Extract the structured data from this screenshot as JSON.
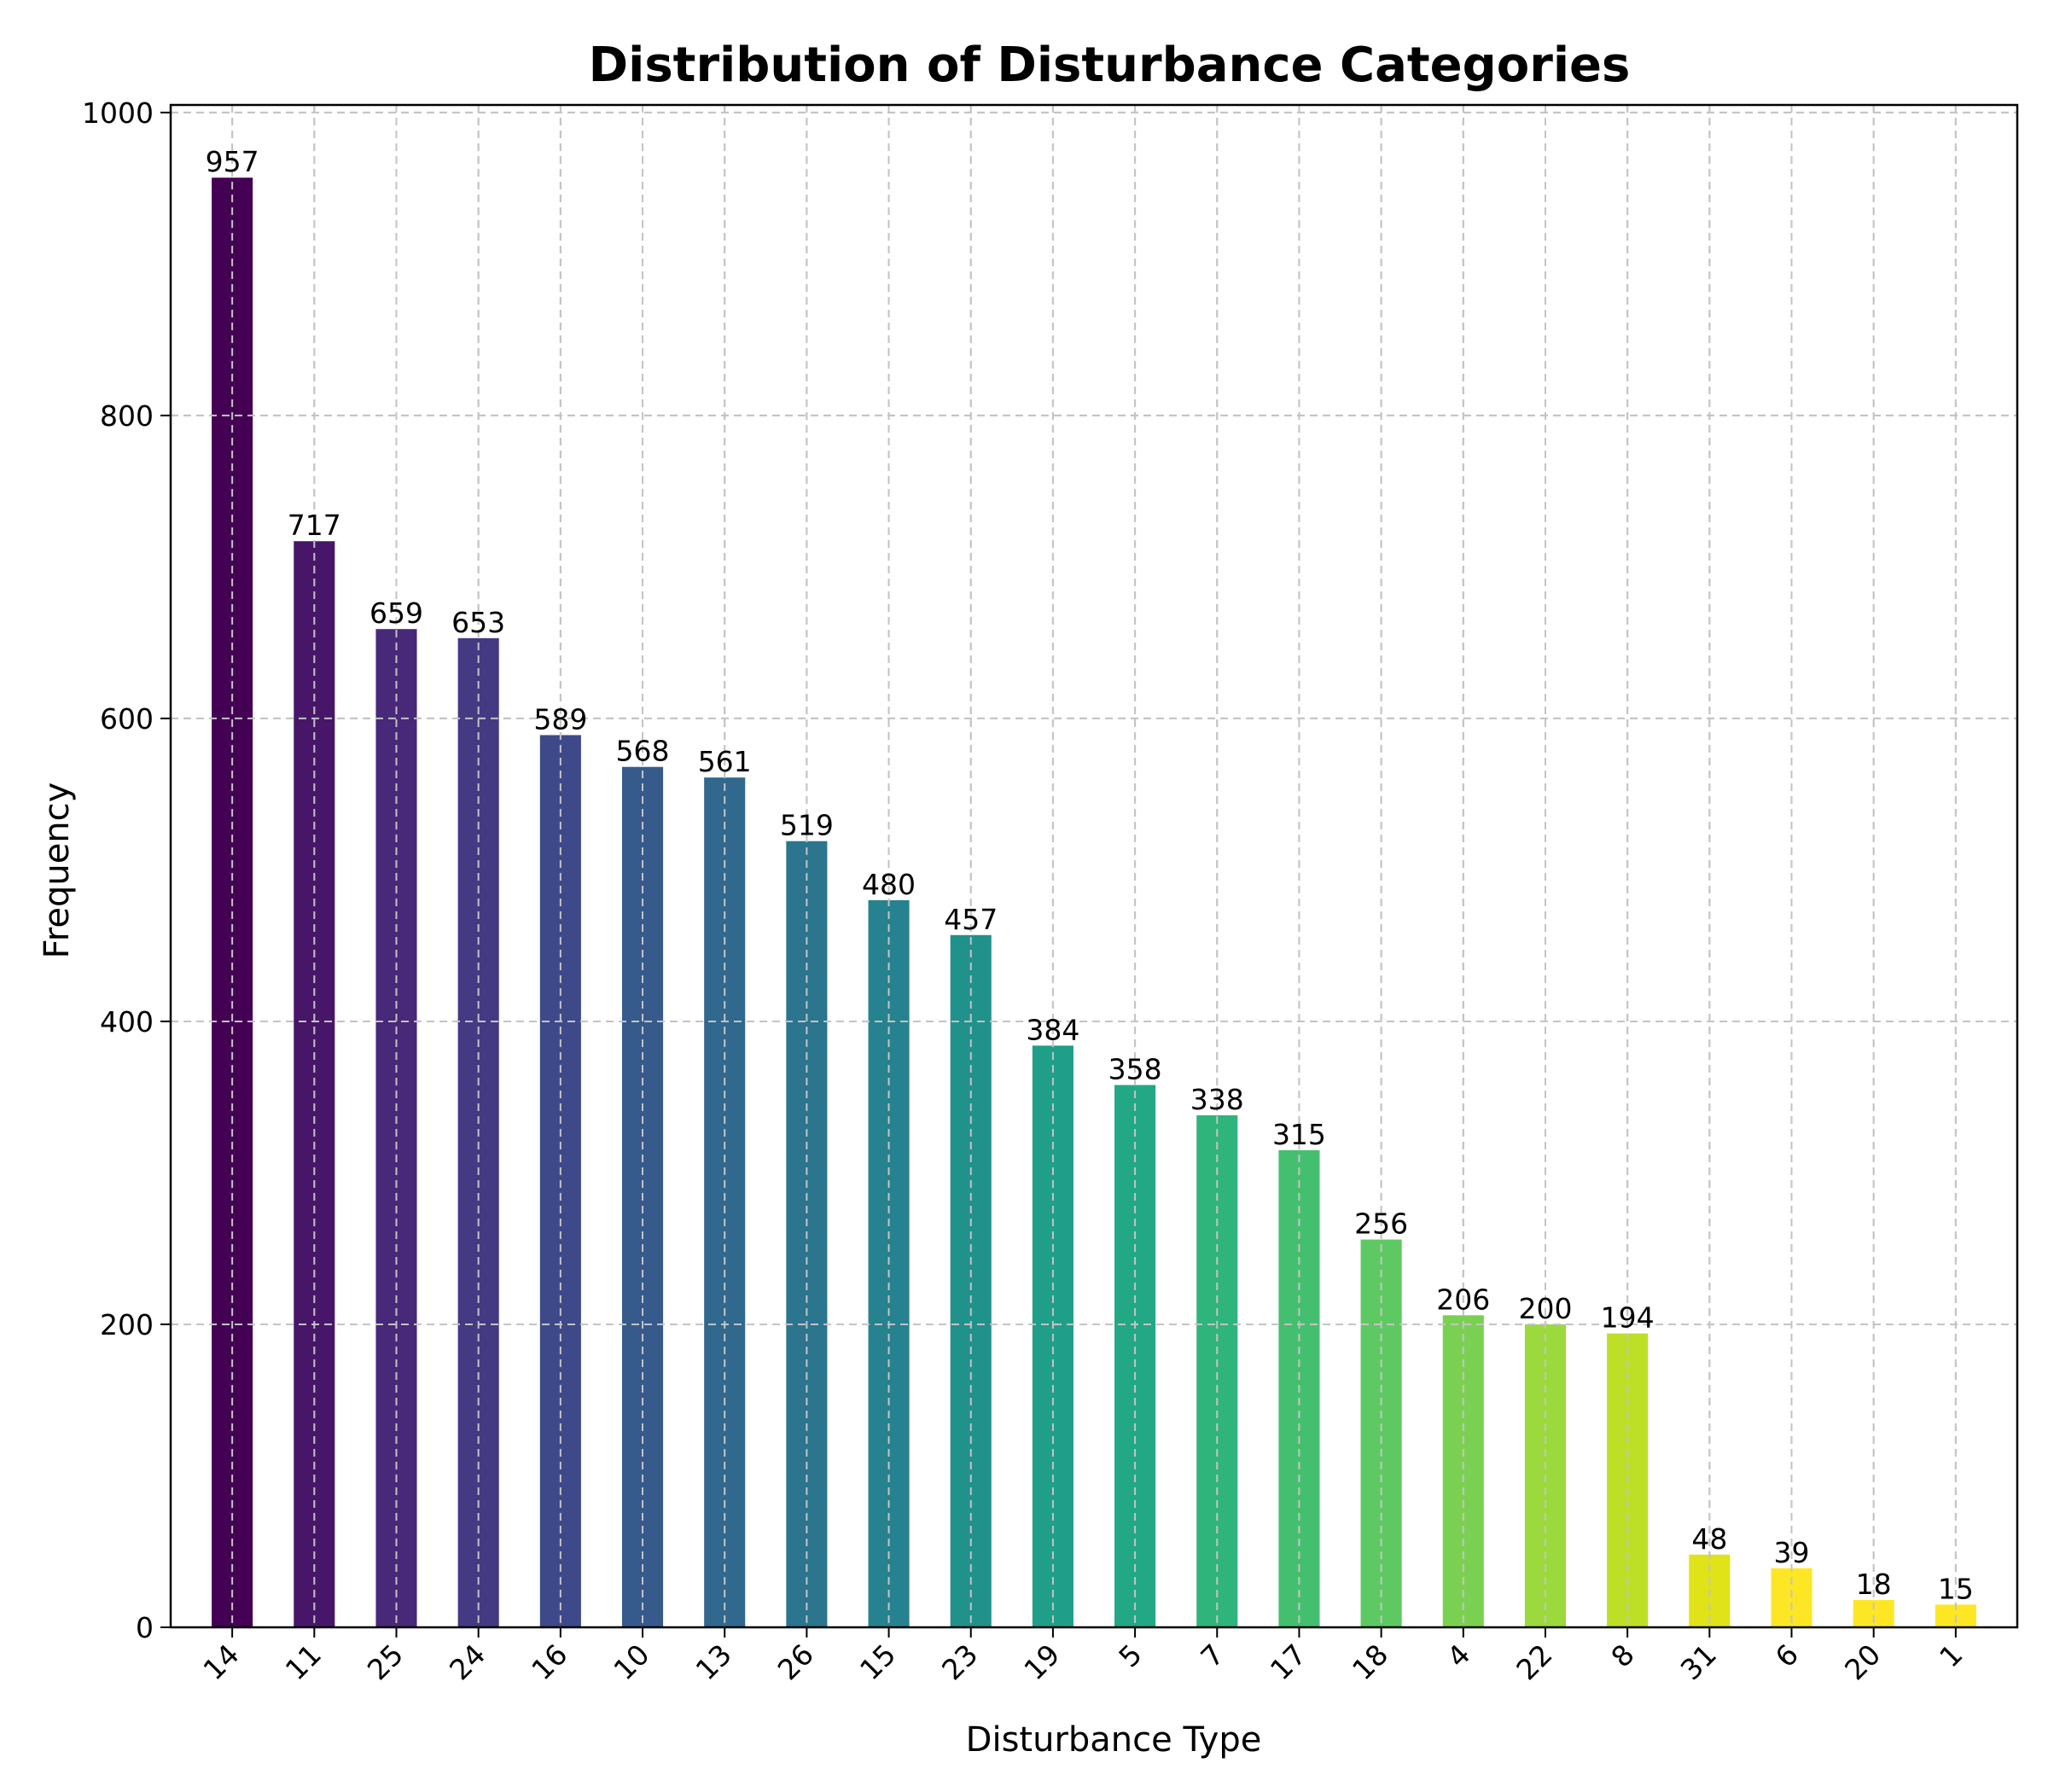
{
  "chart_data": {
    "type": "bar",
    "title": "Distribution of Disturbance Categories",
    "xlabel": "Disturbance Type",
    "ylabel": "Frequency",
    "categories": [
      "14",
      "11",
      "25",
      "24",
      "16",
      "10",
      "13",
      "26",
      "15",
      "23",
      "19",
      "5",
      "7",
      "17",
      "18",
      "4",
      "22",
      "8",
      "31",
      "6",
      "20",
      "1"
    ],
    "values": [
      957,
      717,
      659,
      653,
      589,
      568,
      561,
      519,
      480,
      457,
      384,
      358,
      338,
      315,
      256,
      206,
      200,
      194,
      48,
      39,
      18,
      15
    ],
    "ylim": [
      0,
      1005
    ],
    "yticks": [
      0,
      200,
      400,
      600,
      800,
      1000
    ],
    "grid": true,
    "colormap": "viridis",
    "colors": [
      "#440154",
      "#481668",
      "#482878",
      "#443983",
      "#3e4989",
      "#375a8c",
      "#31688e",
      "#2b758e",
      "#26828e",
      "#21918c",
      "#1f9e89",
      "#22a884",
      "#2fb47c",
      "#44bf70",
      "#5ec962",
      "#7ad151",
      "#9bd93c",
      "#bddf26",
      "#dfe318",
      "#fde725",
      "#fde725",
      "#fde725"
    ]
  }
}
